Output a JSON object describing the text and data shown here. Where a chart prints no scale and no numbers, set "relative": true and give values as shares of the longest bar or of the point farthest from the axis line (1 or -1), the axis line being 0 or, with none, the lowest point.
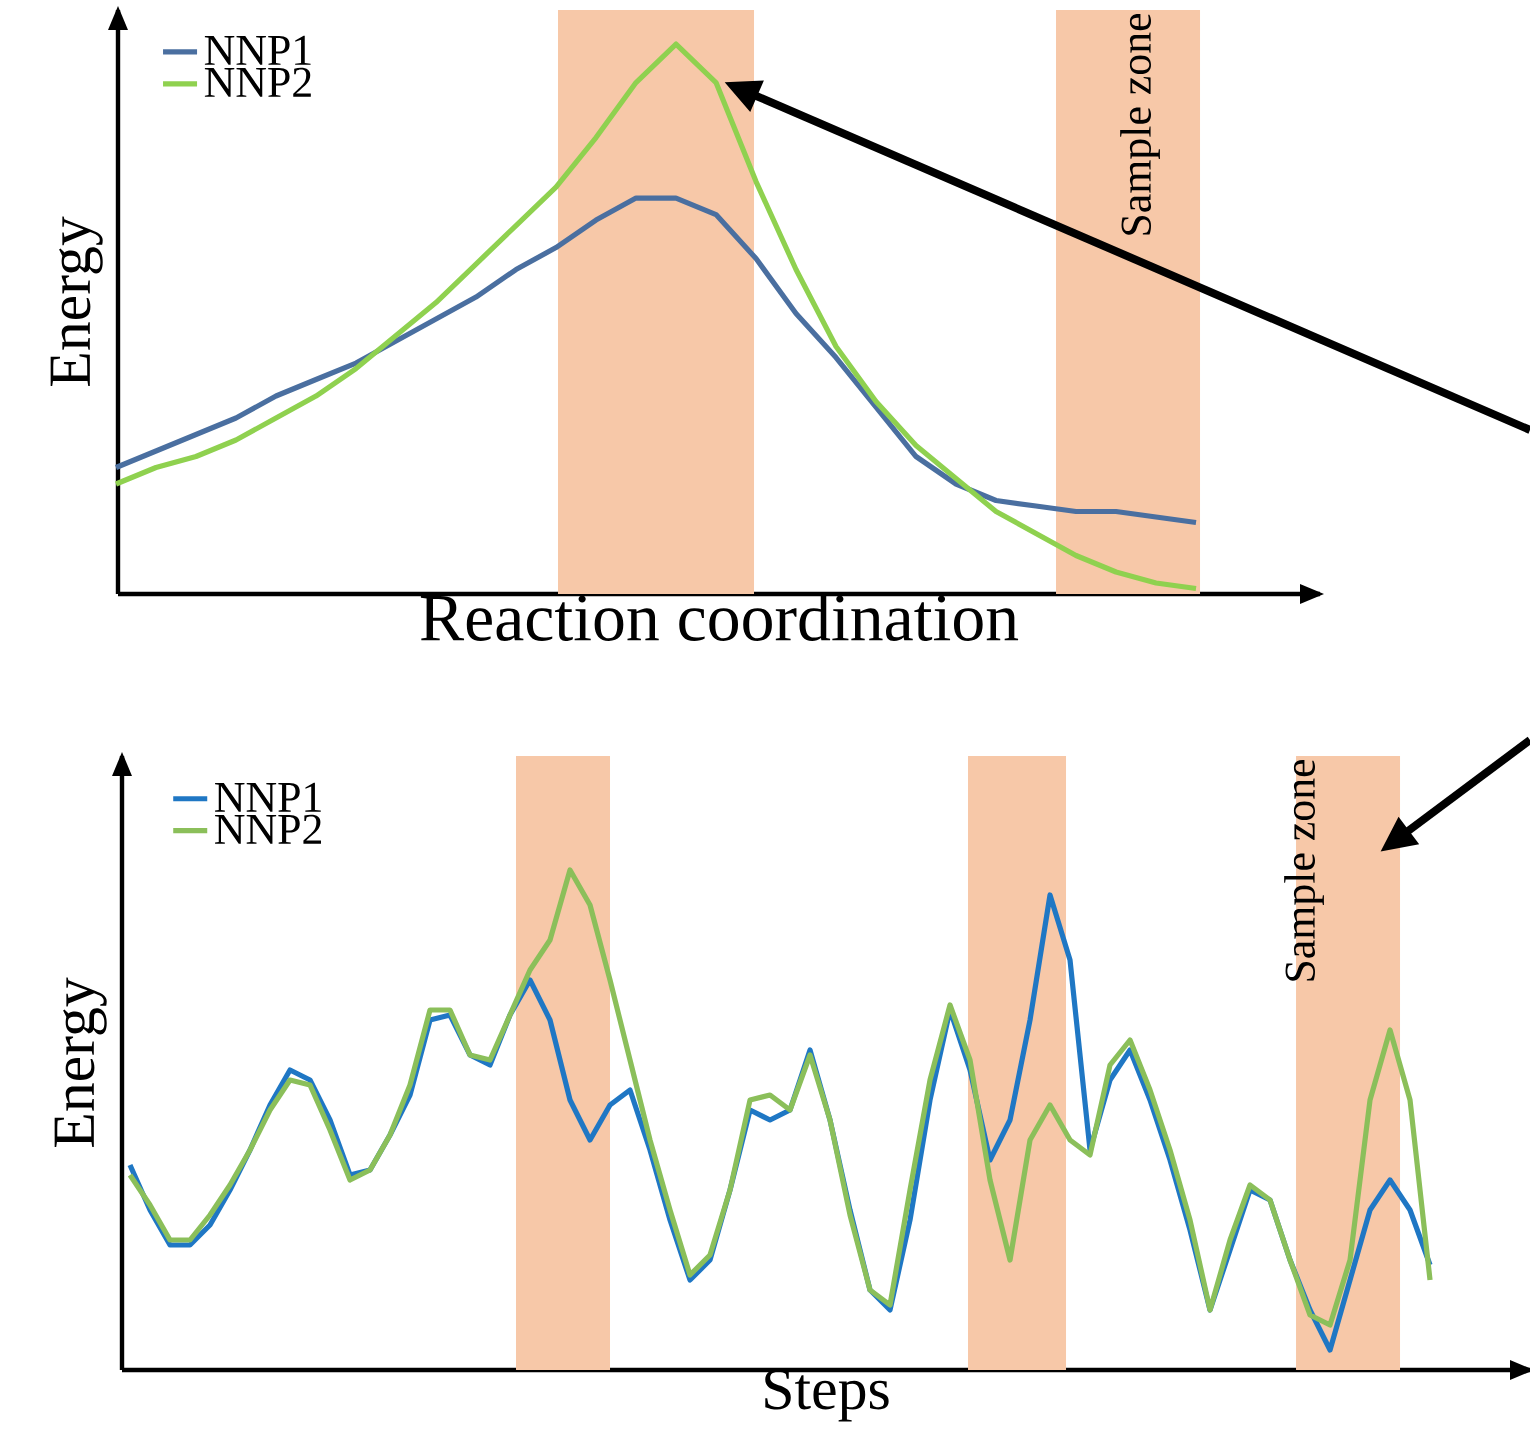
{
  "chart_data": [
    {
      "type": "line",
      "relative": true,
      "xlabel": "Reaction coordination",
      "ylabel": "Energy",
      "legend": "top left",
      "marker": "none",
      "categories": [
        null,
        null,
        null,
        null,
        null,
        null,
        null,
        null,
        null,
        null,
        null,
        null,
        null,
        null,
        null,
        null,
        null,
        null,
        null,
        null,
        null,
        null,
        null,
        null,
        null,
        null,
        null,
        null
      ],
      "series": [
        {
          "name": "NNP1",
          "color": "#4a6fa0",
          "values": [
            0.23,
            0.26,
            0.29,
            0.32,
            0.36,
            0.39,
            0.42,
            0.46,
            0.5,
            0.54,
            0.59,
            0.63,
            0.68,
            0.72,
            0.72,
            0.69,
            0.61,
            0.51,
            0.43,
            0.34,
            0.25,
            0.2,
            0.17,
            0.16,
            0.15,
            0.15,
            0.14,
            0.13
          ]
        },
        {
          "name": "NNP2",
          "color": "#8fd14f",
          "values": [
            0.2,
            0.23,
            0.25,
            0.28,
            0.32,
            0.36,
            0.41,
            0.47,
            0.53,
            0.6,
            0.67,
            0.74,
            0.83,
            0.93,
            1.0,
            0.93,
            0.75,
            0.59,
            0.45,
            0.35,
            0.27,
            0.21,
            0.15,
            0.11,
            0.07,
            0.04,
            0.02,
            0.01
          ]
        }
      ],
      "annotations": [
        "Sample zone"
      ]
    },
    {
      "type": "line",
      "relative": true,
      "xlabel": "Steps",
      "ylabel": "Energy",
      "legend": "top left",
      "marker": "none",
      "categories": [
        null,
        null,
        null,
        null,
        null,
        null,
        null,
        null,
        null,
        null,
        null,
        null,
        null,
        null,
        null,
        null,
        null,
        null,
        null,
        null,
        null,
        null,
        null,
        null,
        null,
        null,
        null,
        null,
        null,
        null,
        null,
        null,
        null,
        null,
        null,
        null,
        null,
        null,
        null,
        null,
        null,
        null,
        null,
        null,
        null,
        null,
        null,
        null,
        null,
        null,
        null,
        null,
        null,
        null,
        null,
        null,
        null,
        null,
        null,
        null,
        null,
        null,
        null,
        null,
        null,
        null
      ],
      "series": [
        {
          "name": "NNP1",
          "color": "#1f77c4",
          "values": [
            0.41,
            0.32,
            0.25,
            0.25,
            0.29,
            0.36,
            0.44,
            0.53,
            0.6,
            0.58,
            0.5,
            0.39,
            0.4,
            0.47,
            0.55,
            0.7,
            0.71,
            0.63,
            0.61,
            0.71,
            0.78,
            0.7,
            0.54,
            0.46,
            0.53,
            0.56,
            0.44,
            0.3,
            0.18,
            0.22,
            0.36,
            0.52,
            0.5,
            0.52,
            0.64,
            0.5,
            0.32,
            0.16,
            0.12,
            0.3,
            0.54,
            0.72,
            0.6,
            0.42,
            0.5,
            0.7,
            0.95,
            0.82,
            0.44,
            0.58,
            0.64,
            0.54,
            0.42,
            0.28,
            0.12,
            0.24,
            0.36,
            0.34,
            0.22,
            0.12,
            0.04,
            0.18,
            0.32,
            0.38,
            0.32,
            0.21
          ]
        },
        {
          "name": "NNP2",
          "color": "#8bbf5a",
          "values": [
            0.39,
            0.33,
            0.26,
            0.26,
            0.31,
            0.37,
            0.44,
            0.52,
            0.58,
            0.57,
            0.48,
            0.38,
            0.4,
            0.47,
            0.57,
            0.72,
            0.72,
            0.63,
            0.62,
            0.71,
            0.8,
            0.86,
            1.0,
            0.93,
            0.78,
            0.62,
            0.46,
            0.32,
            0.19,
            0.23,
            0.36,
            0.54,
            0.55,
            0.52,
            0.63,
            0.5,
            0.31,
            0.16,
            0.13,
            0.36,
            0.58,
            0.73,
            0.62,
            0.38,
            0.22,
            0.46,
            0.53,
            0.46,
            0.43,
            0.61,
            0.66,
            0.56,
            0.44,
            0.3,
            0.12,
            0.26,
            0.37,
            0.34,
            0.22,
            0.11,
            0.09,
            0.22,
            0.54,
            0.68,
            0.54,
            0.18
          ]
        }
      ],
      "annotations": [
        "Sample zone"
      ]
    }
  ]
}
